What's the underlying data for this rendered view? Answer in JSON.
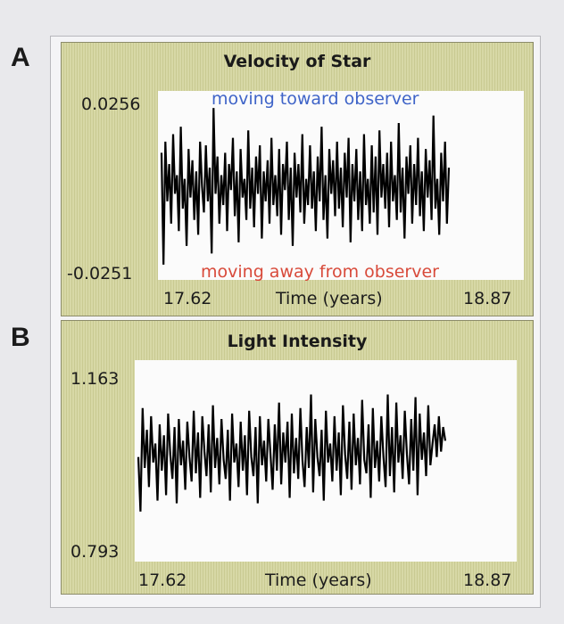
{
  "panels": [
    {
      "letter": "A"
    },
    {
      "letter": "B"
    }
  ],
  "chart_data": [
    {
      "type": "line",
      "title": "Velocity of Star",
      "xlabel": "Time (years)",
      "ylabel": "",
      "xlim": [
        17.62,
        18.87
      ],
      "ylim": [
        -0.0251,
        0.0256
      ],
      "x_tick_labels": [
        "17.62",
        "18.87"
      ],
      "y_tick_labels": [
        "0.0256",
        "-0.0251"
      ],
      "annotations": {
        "top": "moving toward observer",
        "bottom": "moving away from observer"
      },
      "colors": {
        "line": "#000000",
        "toward": "#3f64c8",
        "away": "#d84a3a"
      },
      "series": [
        {
          "x_range": [
            17.62,
            18.87
          ],
          "values": [
            0.009,
            -0.021,
            0.012,
            -0.004,
            0.006,
            -0.01,
            0.014,
            -0.002,
            0.003,
            -0.012,
            0.016,
            -0.006,
            0.002,
            -0.016,
            0.01,
            -0.003,
            0.007,
            -0.009,
            0.004,
            -0.013,
            0.012,
            0.0,
            -0.007,
            0.011,
            -0.004,
            0.005,
            -0.018,
            0.021,
            -0.002,
            0.008,
            -0.01,
            0.003,
            -0.005,
            0.009,
            -0.012,
            0.006,
            -0.001,
            0.013,
            -0.008,
            0.004,
            -0.015,
            0.01,
            -0.003,
            0.002,
            -0.009,
            0.015,
            -0.006,
            0.005,
            -0.011,
            0.008,
            -0.002,
            0.011,
            -0.014,
            0.004,
            -0.004,
            0.007,
            -0.01,
            0.013,
            -0.005,
            0.003,
            -0.008,
            0.01,
            -0.013,
            0.006,
            -0.001,
            0.012,
            -0.009,
            0.005,
            -0.016,
            0.009,
            -0.003,
            0.006,
            -0.007,
            0.014,
            -0.01,
            0.002,
            -0.005,
            0.011,
            -0.006,
            0.004,
            -0.012,
            0.008,
            -0.004,
            0.016,
            -0.009,
            0.003,
            -0.014,
            0.01,
            -0.002,
            0.007,
            -0.008,
            0.012,
            -0.006,
            0.005,
            -0.011,
            0.009,
            -0.003,
            0.013,
            -0.015,
            0.006,
            -0.004,
            0.01,
            -0.009,
            0.004,
            -0.012,
            0.014,
            -0.005,
            0.002,
            -0.01,
            0.011,
            -0.007,
            0.008,
            -0.013,
            0.015,
            -0.003,
            0.006,
            -0.006,
            0.009,
            -0.011,
            0.012,
            -0.004,
            0.003,
            -0.009,
            0.017,
            -0.007,
            0.005,
            -0.014,
            0.008,
            -0.002,
            0.011,
            -0.01,
            0.006,
            -0.005,
            0.013,
            -0.008,
            0.004,
            -0.012,
            0.01,
            -0.003,
            0.007,
            -0.009,
            0.019,
            -0.006,
            0.002,
            -0.013,
            0.009,
            -0.004,
            0.012,
            -0.01,
            0.005
          ]
        }
      ]
    },
    {
      "type": "line",
      "title": "Light Intensity",
      "xlabel": "Time (years)",
      "ylabel": "",
      "xlim": [
        17.62,
        18.87
      ],
      "ylim": [
        0.793,
        1.163
      ],
      "x_tick_labels": [
        "17.62",
        "18.87"
      ],
      "y_tick_labels": [
        "1.163",
        "0.793"
      ],
      "colors": {
        "line": "#000000"
      },
      "series": [
        {
          "x_range": [
            17.62,
            18.87
          ],
          "values": [
            0.985,
            0.885,
            1.075,
            0.965,
            1.035,
            0.93,
            1.06,
            0.975,
            1.01,
            0.905,
            1.045,
            0.96,
            1.025,
            0.915,
            1.065,
            0.99,
            0.945,
            1.04,
            0.9,
            1.055,
            0.97,
            1.015,
            0.925,
            1.05,
            0.985,
            0.94,
            1.07,
            0.955,
            1.03,
            0.91,
            1.06,
            0.995,
            0.95,
            1.045,
            0.92,
            1.08,
            0.965,
            1.02,
            0.935,
            1.055,
            0.98,
            0.945,
            1.035,
            0.905,
            1.065,
            0.975,
            1.01,
            0.93,
            1.05,
            0.96,
            1.025,
            0.915,
            1.07,
            0.985,
            0.95,
            1.04,
            0.9,
            1.06,
            0.97,
            1.015,
            0.94,
            1.055,
            0.99,
            0.925,
            1.045,
            0.96,
            1.085,
            0.935,
            1.03,
            0.975,
            1.05,
            0.91,
            1.065,
            0.955,
            1.02,
            0.945,
            1.075,
            0.98,
            0.93,
            1.04,
            0.965,
            1.1,
            0.92,
            1.055,
            0.985,
            0.95,
            1.035,
            0.905,
            1.07,
            0.975,
            1.01,
            0.94,
            1.06,
            0.96,
            1.03,
            0.915,
            1.08,
            0.99,
            0.945,
            1.05,
            0.925,
            1.065,
            0.97,
            1.02,
            0.935,
            1.09,
            0.98,
            0.955,
            1.045,
            0.91,
            1.075,
            0.965,
            1.015,
            0.94,
            1.06,
            0.985,
            0.93,
            1.1,
            0.95,
            1.04,
            0.92,
            1.085,
            0.975,
            1.025,
            0.945,
            1.07,
            0.99,
            0.935,
            1.055,
            0.96,
            1.095,
            0.915,
            1.065,
            0.98,
            1.03,
            0.95,
            1.08,
            0.97,
            1.01,
            1.045,
            0.985,
            1.06,
            0.995,
            1.04,
            1.015
          ]
        }
      ]
    }
  ]
}
